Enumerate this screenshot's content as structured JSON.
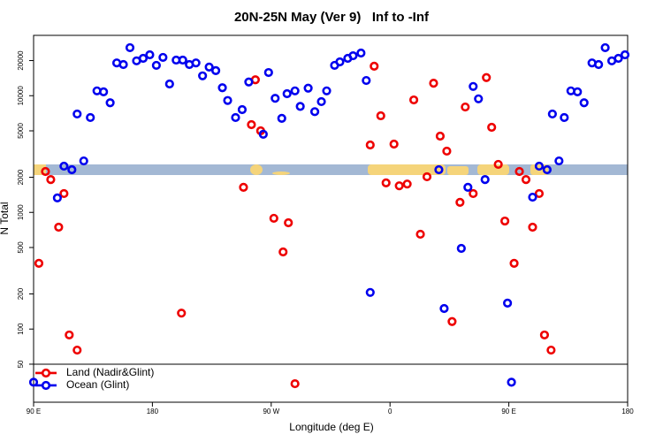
{
  "chart_data": {
    "type": "scatter",
    "title": "20N-25N May (Ver 9)   Inf to -Inf",
    "xlabel": "Longitude (deg E)",
    "ylabel": "N Total",
    "ylog": true,
    "xlim": [
      90,
      540
    ],
    "ylim": [
      23.6,
      32900
    ],
    "xticks": [
      {
        "value": 90,
        "label": "90 E"
      },
      180,
      {
        "value": 270,
        "label": "90 W"
      },
      {
        "value": 360,
        "label": "0"
      },
      {
        "value": 450,
        "label": "90 E"
      },
      {
        "value": 540,
        "label": "180"
      }
    ],
    "yticks": [
      50,
      100,
      200,
      500,
      1000,
      2000,
      5000,
      10000,
      20000
    ],
    "legend": "bottom-left",
    "series": [
      {
        "name": "Land (Nadir&Glint)",
        "color": "#ee0000",
        "x": [
          94,
          99,
          103,
          109,
          113,
          117,
          123,
          202,
          249,
          255,
          258,
          262,
          272,
          279,
          283,
          288,
          345,
          348,
          353,
          357,
          363,
          367,
          373,
          378,
          383,
          388,
          393,
          398,
          403,
          407,
          413,
          417,
          423,
          433,
          437,
          442,
          447,
          454,
          458,
          463,
          468,
          473,
          477,
          482
        ],
        "values": [
          366,
          2240,
          1910,
          747,
          1450,
          89,
          66,
          137,
          1640,
          5650,
          13700,
          5000,
          890,
          458,
          815,
          34,
          3780,
          17900,
          6730,
          1790,
          3850,
          1690,
          1750,
          9200,
          650,
          2020,
          12800,
          4500,
          3350,
          116,
          1220,
          8000,
          1450,
          14300,
          5360,
          2580,
          843,
          366,
          2240,
          1910,
          747,
          1450,
          89,
          66
        ]
      },
      {
        "name": "Ocean (Glint)",
        "color": "#0000ee",
        "x": [
          90,
          108,
          113,
          119,
          123,
          128,
          133,
          138,
          143,
          148,
          153,
          158,
          163,
          168,
          173,
          178,
          183,
          188,
          193,
          198,
          203,
          208,
          213,
          218,
          223,
          228,
          233,
          237,
          243,
          248,
          253,
          264,
          268,
          273,
          278,
          282,
          288,
          292,
          298,
          303,
          308,
          312,
          318,
          322,
          328,
          332,
          338,
          342,
          345,
          397,
          401,
          414,
          419,
          423,
          427,
          432,
          449,
          452,
          468,
          473,
          479,
          483,
          488,
          492,
          497,
          502,
          507,
          513,
          518,
          523,
          528,
          533,
          538
        ],
        "values": [
          35,
          1330,
          2490,
          2320,
          6970,
          2760,
          6500,
          11000,
          10800,
          8700,
          19100,
          18500,
          25800,
          19900,
          20900,
          22400,
          18200,
          21300,
          12600,
          20200,
          20200,
          18500,
          19100,
          14800,
          17600,
          16400,
          11700,
          9100,
          6500,
          7600,
          13100,
          4670,
          15800,
          9500,
          6400,
          10400,
          11000,
          8100,
          11600,
          7300,
          8900,
          11000,
          18200,
          19500,
          20900,
          22000,
          23200,
          13500,
          206,
          2320,
          150,
          491,
          1640,
          12000,
          9400,
          1910,
          167,
          35,
          1350,
          2490,
          2320,
          6970,
          2760,
          6500,
          11000,
          10800,
          8700,
          19100,
          18500,
          25800,
          19900,
          20900,
          22400
        ]
      }
    ]
  }
}
